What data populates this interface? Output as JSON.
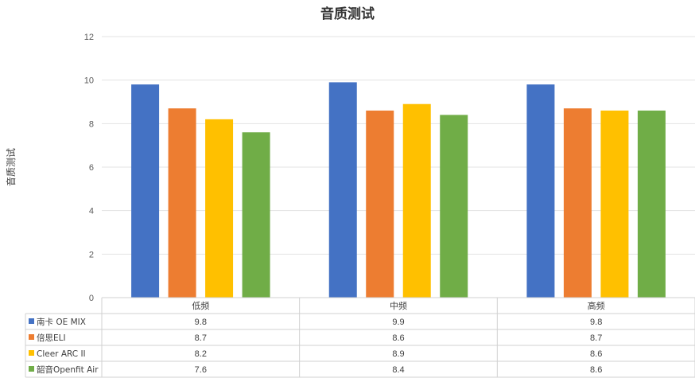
{
  "chart_data": {
    "type": "bar",
    "title": "音质测试",
    "ylabel": "音质测试",
    "xlabel": "",
    "ylim": [
      0,
      12
    ],
    "yticks": [
      0,
      2,
      4,
      6,
      8,
      10,
      12
    ],
    "grid": true,
    "legend": "data-table-below",
    "categories": [
      "低频",
      "中频",
      "高频"
    ],
    "series": [
      {
        "name": "南卡 OE MIX",
        "color": "#4472C4",
        "values": [
          9.8,
          9.9,
          9.8
        ],
        "labels": [
          "9.8",
          "9.9",
          "9.8"
        ]
      },
      {
        "name": "倍思ELI",
        "color": "#ED7D31",
        "values": [
          8.7,
          8.6,
          8.7
        ],
        "labels": [
          "8.7",
          "8.6",
          "8.7"
        ]
      },
      {
        "name": "Cleer ARC II",
        "color": "#FFC000",
        "values": [
          8.2,
          8.9,
          8.6
        ],
        "labels": [
          "8.2",
          "8.9",
          "8.6"
        ]
      },
      {
        "name": "韶音Openfit Air",
        "color": "#70AD47",
        "values": [
          7.6,
          8.4,
          8.6
        ],
        "labels": [
          "7.6",
          "8.4",
          "8.6"
        ]
      }
    ]
  }
}
